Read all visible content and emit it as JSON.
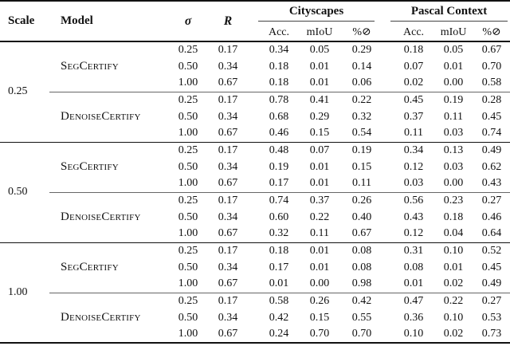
{
  "colors": {
    "text": "#111111",
    "background": "#ffffff",
    "rule": "#111111"
  },
  "table": {
    "headers": {
      "scale": "Scale",
      "model": "Model",
      "sigma": "σ",
      "radius": "R",
      "groups": [
        {
          "label": "Cityscapes"
        },
        {
          "label": "Pascal Context"
        }
      ],
      "sub": {
        "acc": "Acc.",
        "miou": "mIoU",
        "abstain": "%⊘"
      }
    },
    "groups": [
      {
        "scale": "0.25",
        "blocks": [
          {
            "model": "SegCertify",
            "rows": [
              {
                "sigma": "0.25",
                "radius": "0.17",
                "cityscapes": [
                  "0.34",
                  "0.05",
                  "0.29"
                ],
                "pascal": [
                  "0.18",
                  "0.05",
                  "0.67"
                ]
              },
              {
                "sigma": "0.50",
                "radius": "0.34",
                "cityscapes": [
                  "0.18",
                  "0.01",
                  "0.14"
                ],
                "pascal": [
                  "0.07",
                  "0.01",
                  "0.70"
                ]
              },
              {
                "sigma": "1.00",
                "radius": "0.67",
                "cityscapes": [
                  "0.18",
                  "0.01",
                  "0.06"
                ],
                "pascal": [
                  "0.02",
                  "0.00",
                  "0.58"
                ]
              }
            ]
          },
          {
            "model": "DenoiseCertify",
            "rows": [
              {
                "sigma": "0.25",
                "radius": "0.17",
                "cityscapes": [
                  "0.78",
                  "0.41",
                  "0.22"
                ],
                "pascal": [
                  "0.45",
                  "0.19",
                  "0.28"
                ]
              },
              {
                "sigma": "0.50",
                "radius": "0.34",
                "cityscapes": [
                  "0.68",
                  "0.29",
                  "0.32"
                ],
                "pascal": [
                  "0.37",
                  "0.11",
                  "0.45"
                ]
              },
              {
                "sigma": "1.00",
                "radius": "0.67",
                "cityscapes": [
                  "0.46",
                  "0.15",
                  "0.54"
                ],
                "pascal": [
                  "0.11",
                  "0.03",
                  "0.74"
                ]
              }
            ]
          }
        ]
      },
      {
        "scale": "0.50",
        "blocks": [
          {
            "model": "SegCertify",
            "rows": [
              {
                "sigma": "0.25",
                "radius": "0.17",
                "cityscapes": [
                  "0.48",
                  "0.07",
                  "0.19"
                ],
                "pascal": [
                  "0.34",
                  "0.13",
                  "0.49"
                ]
              },
              {
                "sigma": "0.50",
                "radius": "0.34",
                "cityscapes": [
                  "0.19",
                  "0.01",
                  "0.15"
                ],
                "pascal": [
                  "0.12",
                  "0.03",
                  "0.62"
                ]
              },
              {
                "sigma": "1.00",
                "radius": "0.67",
                "cityscapes": [
                  "0.17",
                  "0.01",
                  "0.11"
                ],
                "pascal": [
                  "0.03",
                  "0.00",
                  "0.43"
                ]
              }
            ]
          },
          {
            "model": "DenoiseCertify",
            "rows": [
              {
                "sigma": "0.25",
                "radius": "0.17",
                "cityscapes": [
                  "0.74",
                  "0.37",
                  "0.26"
                ],
                "pascal": [
                  "0.56",
                  "0.23",
                  "0.27"
                ]
              },
              {
                "sigma": "0.50",
                "radius": "0.34",
                "cityscapes": [
                  "0.60",
                  "0.22",
                  "0.40"
                ],
                "pascal": [
                  "0.43",
                  "0.18",
                  "0.46"
                ]
              },
              {
                "sigma": "1.00",
                "radius": "0.67",
                "cityscapes": [
                  "0.32",
                  "0.11",
                  "0.67"
                ],
                "pascal": [
                  "0.12",
                  "0.04",
                  "0.64"
                ]
              }
            ]
          }
        ]
      },
      {
        "scale": "1.00",
        "blocks": [
          {
            "model": "SegCertify",
            "rows": [
              {
                "sigma": "0.25",
                "radius": "0.17",
                "cityscapes": [
                  "0.18",
                  "0.01",
                  "0.08"
                ],
                "pascal": [
                  "0.31",
                  "0.10",
                  "0.52"
                ]
              },
              {
                "sigma": "0.50",
                "radius": "0.34",
                "cityscapes": [
                  "0.17",
                  "0.01",
                  "0.08"
                ],
                "pascal": [
                  "0.08",
                  "0.01",
                  "0.45"
                ]
              },
              {
                "sigma": "1.00",
                "radius": "0.67",
                "cityscapes": [
                  "0.01",
                  "0.00",
                  "0.98"
                ],
                "pascal": [
                  "0.01",
                  "0.02",
                  "0.49"
                ]
              }
            ]
          },
          {
            "model": "DenoiseCertify",
            "rows": [
              {
                "sigma": "0.25",
                "radius": "0.17",
                "cityscapes": [
                  "0.58",
                  "0.26",
                  "0.42"
                ],
                "pascal": [
                  "0.47",
                  "0.22",
                  "0.27"
                ]
              },
              {
                "sigma": "0.50",
                "radius": "0.34",
                "cityscapes": [
                  "0.42",
                  "0.15",
                  "0.55"
                ],
                "pascal": [
                  "0.36",
                  "0.10",
                  "0.53"
                ]
              },
              {
                "sigma": "1.00",
                "radius": "0.67",
                "cityscapes": [
                  "0.24",
                  "0.70",
                  "0.70"
                ],
                "pascal": [
                  "0.10",
                  "0.02",
                  "0.73"
                ]
              }
            ]
          }
        ]
      }
    ]
  }
}
